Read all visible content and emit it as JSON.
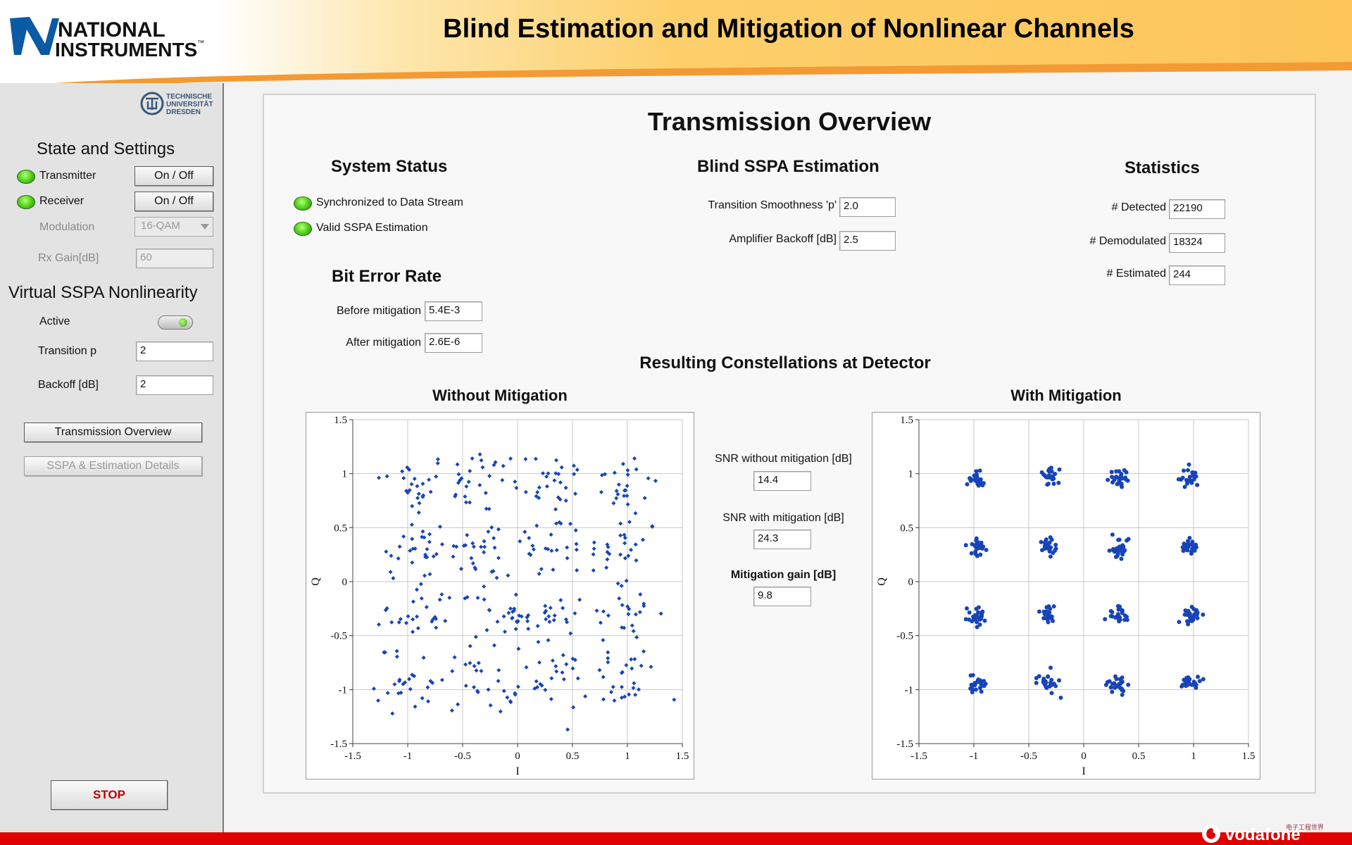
{
  "header": {
    "title": "Blind Estimation and Mitigation of Nonlinear Channels",
    "logo_line1": "NATIONAL",
    "logo_line2": "INSTRUMENTS",
    "logo_tm": "™",
    "tud_line1": "TECHNISCHE",
    "tud_line2": "UNIVERSITÄT",
    "tud_line3": "DRESDEN"
  },
  "sidebar": {
    "state_title": "State and Settings",
    "transmitter_label": "Transmitter",
    "transmitter_button": "On / Off",
    "receiver_label": "Receiver",
    "receiver_button": "On / Off",
    "modulation_label": "Modulation",
    "modulation_value": "16-QAM",
    "rx_gain_label": "Rx Gain[dB]",
    "rx_gain_value": "60",
    "sspa_title": "Virtual SSPA Nonlinearity",
    "active_label": "Active",
    "transition_label": "Transition p",
    "transition_value": "2",
    "backoff_label": "Backoff [dB]",
    "backoff_value": "2",
    "nav_overview": "Transmission Overview",
    "nav_details": "SSPA & Estimation Details",
    "stop_label": "STOP"
  },
  "main": {
    "title": "Transmission Overview",
    "system_status": {
      "title": "System Status",
      "sync_label": "Synchronized to Data Stream",
      "valid_label": "Valid SSPA Estimation"
    },
    "ber": {
      "title": "Bit Error Rate",
      "before_label": "Before mitigation",
      "before_value": "5.4E-3",
      "after_label": "After mitigation",
      "after_value": "2.6E-6"
    },
    "estimation": {
      "title": "Blind SSPA Estimation",
      "smoothness_label": "Transition Smoothness 'p'",
      "smoothness_value": "2.0",
      "backoff_label": "Amplifier Backoff [dB]",
      "backoff_value": "2.5"
    },
    "statistics": {
      "title": "Statistics",
      "detected_label": "# Detected",
      "detected_value": "22190",
      "demodulated_label": "# Demodulated",
      "demodulated_value": "18324",
      "estimated_label": "# Estimated",
      "estimated_value": "244"
    },
    "constellations_title": "Resulting Constellations at Detector",
    "snr": {
      "without_label": "SNR without mitigation [dB]",
      "without_value": "14.4",
      "with_label": "SNR with mitigation [dB]",
      "with_value": "24.3",
      "gain_label": "Mitigation gain [dB]",
      "gain_value": "9.8"
    }
  },
  "footer": {
    "brand": "vodafone",
    "watermark": "电子工程世界"
  },
  "colors": {
    "led_green": "#5ddb23",
    "marker_blue": "#1744b8",
    "stop_red": "#c00000",
    "footer_red": "#e00000",
    "header_orange": "#fdc75a"
  },
  "chart_data": [
    {
      "type": "scatter",
      "title": "Without Mitigation",
      "xlabel": "I",
      "ylabel": "Q",
      "xlim": [
        -1.5,
        1.5
      ],
      "ylim": [
        -1.5,
        1.5
      ],
      "ticks": [
        -1.5,
        -1,
        -0.5,
        0,
        0.5,
        1,
        1.5
      ],
      "tick_labels": [
        "-1.5",
        "-1",
        "-0.5",
        "0",
        "0.5",
        "1",
        "1.5"
      ],
      "grid": true,
      "marker": "diamond",
      "cluster_centers": [
        [
          -0.95,
          0.9
        ],
        [
          -0.32,
          0.92
        ],
        [
          0.3,
          0.93
        ],
        [
          0.95,
          0.9
        ],
        [
          -0.95,
          0.3
        ],
        [
          -0.32,
          0.3
        ],
        [
          0.3,
          0.32
        ],
        [
          0.95,
          0.32
        ],
        [
          -0.95,
          -0.3
        ],
        [
          -0.32,
          -0.3
        ],
        [
          0.3,
          -0.32
        ],
        [
          0.95,
          -0.3
        ],
        [
          -0.95,
          -0.92
        ],
        [
          -0.32,
          -0.92
        ],
        [
          0.3,
          -0.93
        ],
        [
          0.95,
          -0.92
        ]
      ],
      "cluster_spread": 0.17,
      "points_per_cluster": 26
    },
    {
      "type": "scatter",
      "title": "With Mitigation",
      "xlabel": "I",
      "ylabel": "Q",
      "xlim": [
        -1.5,
        1.5
      ],
      "ylim": [
        -1.5,
        1.5
      ],
      "ticks": [
        -1.5,
        -1,
        -0.5,
        0,
        0.5,
        1,
        1.5
      ],
      "tick_labels": [
        "-1.5",
        "-1",
        "-0.5",
        "0",
        "0.5",
        "1",
        "1.5"
      ],
      "grid": true,
      "marker": "circle",
      "cluster_centers": [
        [
          -0.97,
          0.95
        ],
        [
          -0.32,
          0.96
        ],
        [
          0.32,
          0.96
        ],
        [
          0.97,
          0.96
        ],
        [
          -0.97,
          0.32
        ],
        [
          -0.32,
          0.33
        ],
        [
          0.32,
          0.31
        ],
        [
          0.97,
          0.31
        ],
        [
          -0.97,
          -0.32
        ],
        [
          -0.33,
          -0.31
        ],
        [
          0.31,
          -0.31
        ],
        [
          0.97,
          -0.31
        ],
        [
          -0.97,
          -0.94
        ],
        [
          -0.33,
          -0.94
        ],
        [
          0.31,
          -0.95
        ],
        [
          0.97,
          -0.93
        ]
      ],
      "cluster_spread": 0.045,
      "points_per_cluster": 26
    }
  ]
}
